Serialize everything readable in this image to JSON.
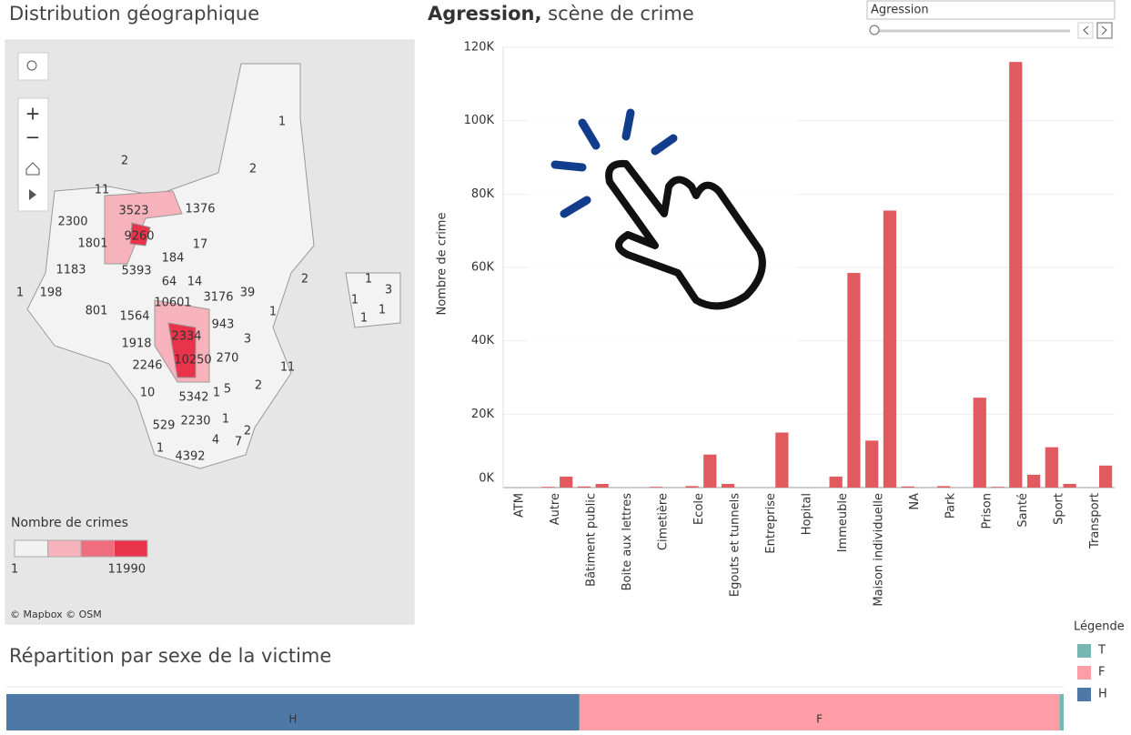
{
  "map": {
    "title": "Distribution géographique",
    "labels": [
      "1",
      "2",
      "2",
      "11",
      "3523",
      "1376",
      "2300",
      "9260",
      "1801",
      "17",
      "184",
      "1183",
      "5393",
      "2",
      "1",
      "1",
      "198",
      "64",
      "14",
      "1",
      "3",
      "10601",
      "3176",
      "39",
      "1",
      "1",
      "801",
      "1564",
      "943",
      "1",
      "2334",
      "3",
      "1918",
      "270",
      "2246",
      "10250",
      "1",
      "1",
      "5",
      "2",
      "10",
      "5342",
      "1",
      "2230",
      "1",
      "529",
      "2",
      "1",
      "4",
      "7",
      "4392"
    ],
    "legend": {
      "title": "Nombre de crimes",
      "min": 1,
      "max": 11990,
      "colors": [
        "#f2f2f2",
        "#f6b3bb",
        "#ef6d7c",
        "#e8334b"
      ]
    },
    "attribution": "© Mapbox © OSM"
  },
  "filter": {
    "value": "Agression"
  },
  "chart_data": [
    {
      "type": "bar",
      "title_bold": "Agression,",
      "title": "scène de crime",
      "ylabel": "Nombre de crime",
      "color": "#e05a5f",
      "categories": [
        "ATM",
        null,
        "Autre",
        null,
        "Bâtiment public",
        null,
        "Boite aux lettres",
        null,
        "Cimetière",
        null,
        "Ecole",
        null,
        "Egouts et tunnels",
        null,
        "Entreprise",
        null,
        "Hopital",
        null,
        "Immeuble",
        null,
        "Maison individuelle",
        null,
        "NA",
        null,
        "Park",
        null,
        "Prison",
        null,
        "Santé",
        null,
        "Sport",
        null,
        "Transport",
        null
      ],
      "values": [
        null,
        null,
        200,
        3000,
        300,
        1000,
        null,
        null,
        200,
        null,
        400,
        9000,
        1000,
        null,
        null,
        15000,
        null,
        null,
        3000,
        58500,
        12800,
        75500,
        300,
        null,
        400,
        null,
        24500,
        200,
        116000,
        3500,
        11000,
        1000,
        null,
        6000
      ],
      "ylim": [
        0,
        120000
      ],
      "yticks": [
        {
          "value": 0,
          "label": "0K"
        },
        {
          "value": 20000,
          "label": "20K"
        },
        {
          "value": 40000,
          "label": "40K"
        },
        {
          "value": 60000,
          "label": "60K"
        },
        {
          "value": 80000,
          "label": "80K"
        },
        {
          "value": 100000,
          "label": "100K"
        },
        {
          "value": 120000,
          "label": "120K"
        }
      ],
      "grid": true
    },
    {
      "type": "stacked_bar_h",
      "title": "Répartition par sexe de la victime",
      "legend_title": "Légende",
      "series": [
        {
          "name": "H",
          "color": "#4e79a7",
          "values": [
            54.2
          ]
        },
        {
          "name": "F",
          "color": "#ff9da7",
          "values": [
            45.4
          ]
        },
        {
          "name": "T",
          "color": "#76b7b2",
          "values": [
            0.4
          ]
        }
      ],
      "xlim": [
        0,
        100
      ]
    }
  ]
}
